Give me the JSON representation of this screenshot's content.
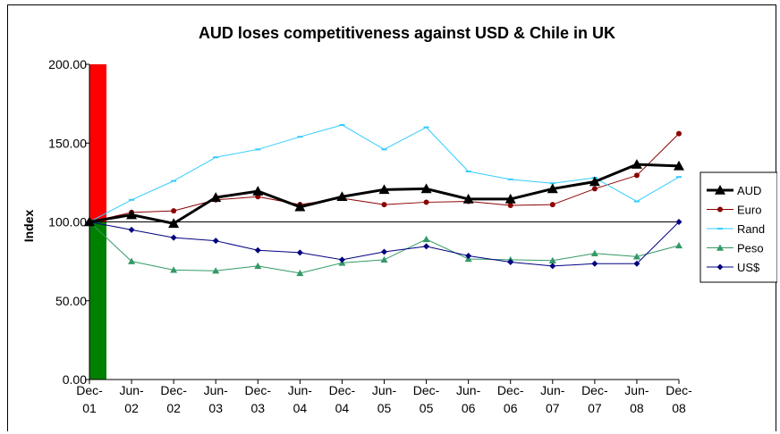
{
  "chart_data": {
    "type": "line",
    "title": "AUD loses competitiveness against USD & Chile in UK",
    "ylabel": "Index",
    "xlabel": "",
    "ylim": [
      0,
      200
    ],
    "yticks": [
      "0.00",
      "50.00",
      "100.00",
      "150.00",
      "200.00"
    ],
    "categories": [
      [
        "Dec-",
        "01"
      ],
      [
        "Jun-",
        "02"
      ],
      [
        "Dec-",
        "02"
      ],
      [
        "Jun-",
        "03"
      ],
      [
        "Dec-",
        "03"
      ],
      [
        "Jun-",
        "04"
      ],
      [
        "Dec-",
        "04"
      ],
      [
        "Jun-",
        "05"
      ],
      [
        "Dec-",
        "05"
      ],
      [
        "Jun-",
        "06"
      ],
      [
        "Dec-",
        "06"
      ],
      [
        "Jun-",
        "07"
      ],
      [
        "Dec-",
        "07"
      ],
      [
        "Jun-",
        "08"
      ],
      [
        "Dec-",
        "08"
      ]
    ],
    "reference_line": 100,
    "bands": [
      {
        "from": 100,
        "to": 200,
        "color": "#ff0000"
      },
      {
        "from": 0,
        "to": 100,
        "color": "#008000"
      }
    ],
    "legend_position": "right",
    "series": [
      {
        "name": "AUD",
        "color": "#000000",
        "marker": "triangle",
        "width": 3,
        "values": [
          100,
          104.5,
          99,
          115.5,
          119.5,
          109.5,
          116,
          120.5,
          121,
          114.5,
          114.5,
          121,
          125.5,
          136.5,
          135.5
        ]
      },
      {
        "name": "Euro",
        "color": "#8b0000",
        "marker": "circle",
        "width": 1,
        "values": [
          100,
          106,
          107,
          114,
          116,
          111,
          115,
          111,
          112.5,
          113,
          110.5,
          111,
          121,
          129.5,
          156
        ]
      },
      {
        "name": "Rand",
        "color": "#33ccff",
        "marker": "dash",
        "width": 1,
        "values": [
          100,
          114,
          126,
          141,
          146,
          154,
          161.5,
          146,
          160,
          132,
          127,
          124.5,
          128,
          113,
          128.5
        ]
      },
      {
        "name": "Peso",
        "color": "#339966",
        "marker": "triangle-small",
        "width": 1,
        "values": [
          100,
          75,
          69.5,
          69,
          72,
          67.5,
          74,
          76,
          89,
          76.5,
          76,
          75.5,
          80,
          78,
          85
        ]
      },
      {
        "name": "US$",
        "color": "#000080",
        "marker": "diamond",
        "width": 1,
        "values": [
          100,
          95,
          90,
          88,
          82,
          80.5,
          76,
          81,
          84.5,
          78.5,
          74.5,
          72,
          73.5,
          73.5,
          100
        ]
      }
    ]
  }
}
